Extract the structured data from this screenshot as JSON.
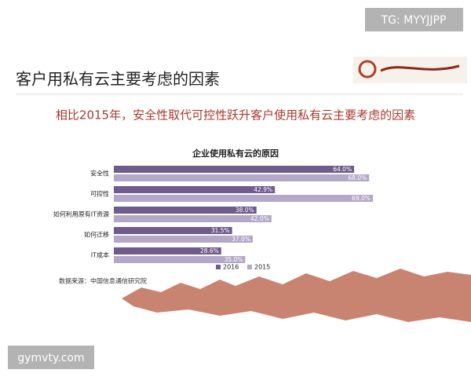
{
  "watermark_top": "TG: MYYJJPP",
  "watermark_bottom": "gymvty.com",
  "slide": {
    "title": "客户用私有云主要考虑的因素",
    "subtitle": "相比2015年，安全性取代可控性跃升客户使用私有云主要考虑的因素",
    "source": "数据来源：中国信息通信研究院"
  },
  "chart_data": {
    "type": "bar",
    "orientation": "horizontal",
    "title": "企业使用私有云的原因",
    "categories": [
      "安全性",
      "可控性",
      "如何利用原有IT资源",
      "如何迁移",
      "IT成本"
    ],
    "series": [
      {
        "name": "2016",
        "color": "#6f5b8c",
        "values": [
          64.0,
          42.9,
          38.0,
          31.5,
          28.6
        ],
        "value_labels": [
          "64.0%",
          "42.9%",
          "38.0%",
          "31.5%",
          "28.6%"
        ]
      },
      {
        "name": "2015",
        "color": "#b4a8c9",
        "values": [
          68.0,
          69.0,
          42.0,
          37.0,
          35.0
        ],
        "value_labels": [
          "68.0%",
          "69.0%",
          "42.0%",
          "37.0%",
          "35.0%"
        ]
      }
    ],
    "legend": "bottom"
  }
}
